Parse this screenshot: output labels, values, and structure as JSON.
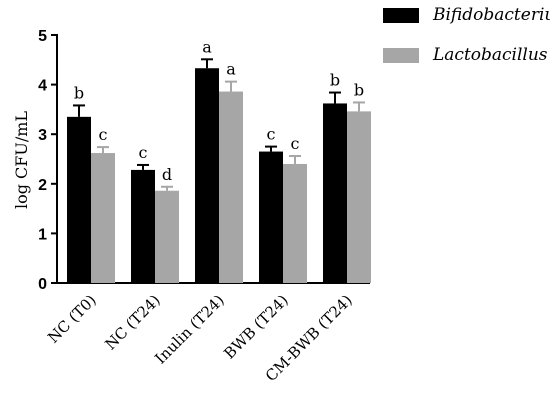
{
  "chart_data": {
    "type": "bar",
    "ylabel": "log CFU/mL",
    "xlabel": "",
    "ylim": [
      0,
      5
    ],
    "yticks": [
      "0",
      "1",
      "2",
      "3",
      "4",
      "5"
    ],
    "categories": [
      "NC (T0)",
      "NC (T24)",
      "Inulin (T24)",
      "BWB (T24)",
      "CM-BWB (T24)"
    ],
    "series": [
      {
        "name": "Bifidobacterium",
        "color": "#000000",
        "values": [
          3.35,
          2.28,
          4.33,
          2.65,
          3.62
        ],
        "errors": [
          0.23,
          0.1,
          0.18,
          0.1,
          0.22
        ],
        "letters": [
          "b",
          "c",
          "a",
          "c",
          "b"
        ]
      },
      {
        "name": "Lactobacillus",
        "color": "#a6a6a6",
        "values": [
          2.62,
          1.86,
          3.86,
          2.4,
          3.46
        ],
        "errors": [
          0.12,
          0.08,
          0.2,
          0.16,
          0.18
        ],
        "letters": [
          "c",
          "d",
          "a",
          "c",
          "b"
        ]
      }
    ],
    "legend_position": "top-right",
    "grid": false
  }
}
